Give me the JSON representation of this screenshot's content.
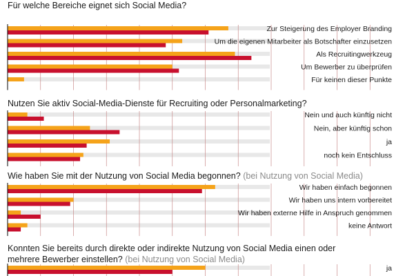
{
  "colors": {
    "series_a": "#f5a31a",
    "series_b": "#c8102e",
    "row_band": "#e8e8e8",
    "gridline": "#c98a8a",
    "axis": "#000000"
  },
  "chart_data": [
    {
      "type": "bar",
      "orientation": "horizontal",
      "title": "Für welche Bereiche eignet sich Social Media?",
      "categories": [
        "Zur Steigerung des Employer Branding",
        "Um die eigenen Mitarbeiter als Botschafter einzusetzen",
        "Als Recruitingwerkzeug",
        "Um Bewerber zu überprüfen",
        "Für keinen dieser Punkte"
      ],
      "series": [
        {
          "values": [
            67,
            53,
            69,
            50,
            5
          ]
        },
        {
          "values": [
            61,
            48,
            74,
            52,
            0
          ]
        }
      ],
      "xlim": [
        0,
        120
      ],
      "grid": true
    },
    {
      "type": "bar",
      "orientation": "horizontal",
      "title": "Nutzen Sie aktiv Social-Media-Dienste für Recruiting oder Personalmarketing?",
      "categories": [
        "Nein und auch künftig nicht",
        "Nein, aber künftig schon",
        "ja",
        "noch kein Entschluss"
      ],
      "series": [
        {
          "values": [
            6,
            25,
            31,
            23
          ]
        },
        {
          "values": [
            11,
            34,
            24,
            22
          ]
        }
      ],
      "xlim": [
        0,
        120
      ],
      "grid": true
    },
    {
      "type": "bar",
      "orientation": "horizontal",
      "title": "Wie haben Sie mit der Nutzung von Social Media begonnen?",
      "subtitle": "(bei Nutzung von Social Media)",
      "categories": [
        "Wir haben einfach begonnen",
        "Wir haben uns intern vorbereitet",
        "Wir haben externe Hilfe in Anspruch genommen",
        "keine Antwort"
      ],
      "series": [
        {
          "values": [
            63,
            20,
            4,
            6
          ]
        },
        {
          "values": [
            59,
            19,
            10,
            4
          ]
        }
      ],
      "xlim": [
        0,
        120
      ],
      "grid": true
    },
    {
      "type": "bar",
      "orientation": "horizontal",
      "title": "Konnten Sie bereits durch direkte oder indirekte Nutzung von Social Media einen oder mehrere Bewerber einstellen?",
      "title_line1": "Konnten Sie bereits durch direkte oder indirekte Nutzung von Social Media einen oder",
      "title_line2": "mehrere Bewerber einstellen?",
      "subtitle": "(bei Nutzung von Social Media)",
      "categories": [
        "ja"
      ],
      "series": [
        {
          "values": [
            60
          ]
        },
        {
          "values": [
            50
          ]
        }
      ],
      "xlim": [
        0,
        120
      ],
      "grid": true
    }
  ]
}
